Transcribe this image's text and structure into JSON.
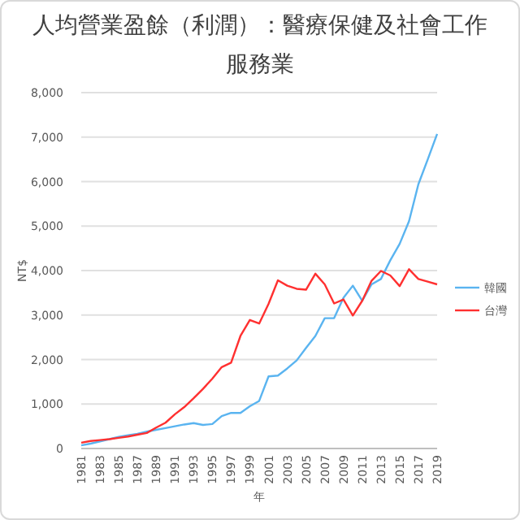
{
  "chart_data": {
    "type": "line",
    "title": "人均營業盈餘（利潤）：醫療保健及社會工作服務業",
    "xlabel": "年",
    "ylabel": "NT$",
    "x": [
      1981,
      1982,
      1983,
      1984,
      1985,
      1986,
      1987,
      1988,
      1989,
      1990,
      1991,
      1992,
      1993,
      1994,
      1995,
      1996,
      1997,
      1998,
      1999,
      2000,
      2001,
      2002,
      2003,
      2004,
      2005,
      2006,
      2007,
      2008,
      2009,
      2010,
      2011,
      2012,
      2013,
      2014,
      2015,
      2016,
      2017,
      2018,
      2019
    ],
    "series": [
      {
        "name": "韓國",
        "color": "#5ab4f0",
        "values": [
          70,
          110,
          160,
          210,
          260,
          300,
          330,
          380,
          420,
          460,
          500,
          540,
          570,
          530,
          550,
          730,
          800,
          800,
          950,
          1070,
          1620,
          1640,
          1800,
          1980,
          2260,
          2530,
          2930,
          2930,
          3390,
          3660,
          3320,
          3690,
          3810,
          4230,
          4600,
          5110,
          5940,
          6500,
          7070
        ]
      },
      {
        "name": "台灣",
        "color": "#ff3030",
        "values": [
          130,
          170,
          190,
          210,
          240,
          270,
          310,
          350,
          470,
          580,
          770,
          930,
          1130,
          1340,
          1570,
          1830,
          1930,
          2530,
          2890,
          2810,
          3250,
          3780,
          3660,
          3590,
          3570,
          3930,
          3690,
          3260,
          3350,
          2990,
          3320,
          3770,
          3990,
          3890,
          3650,
          4030,
          3810,
          3750,
          3690
        ]
      }
    ],
    "xlim": [
      1981,
      2019
    ],
    "xticks": [
      1981,
      1983,
      1985,
      1987,
      1989,
      1991,
      1993,
      1995,
      1997,
      1999,
      2001,
      2003,
      2005,
      2007,
      2009,
      2011,
      2013,
      2015,
      2017,
      2019
    ],
    "ylim": [
      0,
      8000
    ],
    "yticks": [
      {
        "value": 0,
        "label": "0"
      },
      {
        "value": 1000,
        "label": "1,000"
      },
      {
        "value": 2000,
        "label": "2,000"
      },
      {
        "value": 3000,
        "label": "3,000"
      },
      {
        "value": 4000,
        "label": "4,000"
      },
      {
        "value": 5000,
        "label": "5,000"
      },
      {
        "value": 6000,
        "label": "6,000"
      },
      {
        "value": 7000,
        "label": "7,000"
      },
      {
        "value": 8000,
        "label": "8,000"
      }
    ],
    "grid": "y",
    "legend": "right"
  }
}
